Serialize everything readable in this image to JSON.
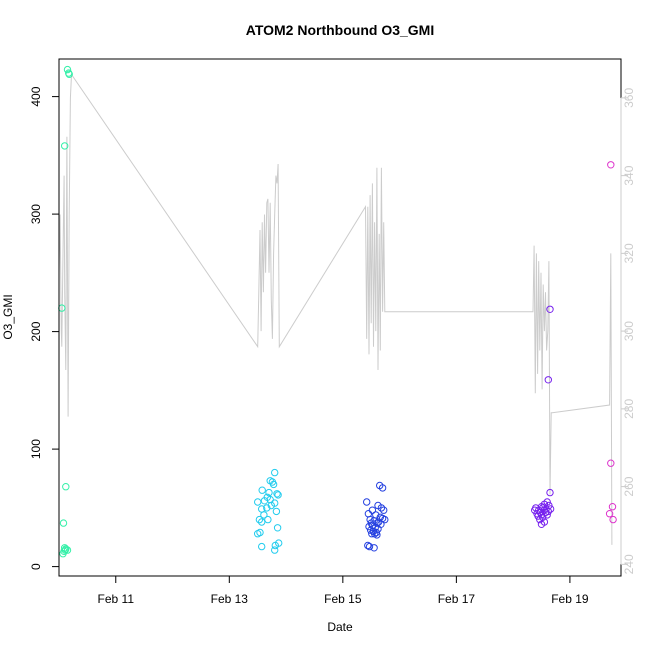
{
  "chart_data": {
    "type": "scatter",
    "title": "ATOM2 Northbound O3_GMI",
    "xlabel": "Date",
    "ylabel": "O3_GMI",
    "x_ticks": [
      {
        "label": "Feb 11",
        "day": 11
      },
      {
        "label": "Feb 13",
        "day": 13
      },
      {
        "label": "Feb 15",
        "day": 15
      },
      {
        "label": "Feb 17",
        "day": 17
      },
      {
        "label": "Feb 19",
        "day": 19
      }
    ],
    "xlim_days": [
      10.0,
      19.9
    ],
    "ylim": [
      -8,
      432
    ],
    "y_ticks": [
      0,
      100,
      200,
      300,
      400
    ],
    "y2lim": [
      237,
      370
    ],
    "y2_ticks": [
      240,
      260,
      280,
      300,
      320,
      340,
      360
    ],
    "y2_color": "#cccccc",
    "grid": false,
    "series": [
      {
        "color": "#33f0a8",
        "points": [
          [
            10.15,
            423
          ],
          [
            10.17,
            420
          ],
          [
            10.18,
            419
          ],
          [
            10.1,
            358
          ],
          [
            10.05,
            220
          ],
          [
            10.12,
            68
          ],
          [
            10.08,
            37
          ],
          [
            10.1,
            16
          ],
          [
            10.12,
            15
          ],
          [
            10.11,
            14
          ],
          [
            10.15,
            14
          ],
          [
            10.09,
            13
          ],
          [
            10.07,
            11
          ]
        ]
      },
      {
        "color": "#22ccee",
        "points": [
          [
            13.8,
            80
          ],
          [
            13.72,
            73
          ],
          [
            13.76,
            72
          ],
          [
            13.78,
            70
          ],
          [
            13.58,
            65
          ],
          [
            13.7,
            63
          ],
          [
            13.84,
            62
          ],
          [
            13.86,
            61
          ],
          [
            13.67,
            59
          ],
          [
            13.72,
            57
          ],
          [
            13.5,
            55
          ],
          [
            13.62,
            56
          ],
          [
            13.8,
            54
          ],
          [
            13.74,
            52
          ],
          [
            13.66,
            50
          ],
          [
            13.57,
            49
          ],
          [
            13.83,
            47
          ],
          [
            13.61,
            44
          ],
          [
            13.53,
            40
          ],
          [
            13.68,
            40
          ],
          [
            13.57,
            38
          ],
          [
            13.85,
            33
          ],
          [
            13.54,
            29
          ],
          [
            13.5,
            28
          ],
          [
            13.87,
            20
          ],
          [
            13.81,
            18
          ],
          [
            13.57,
            17
          ],
          [
            13.8,
            14
          ]
        ]
      },
      {
        "color": "#2440e0",
        "points": [
          [
            15.65,
            69
          ],
          [
            15.7,
            67
          ],
          [
            15.42,
            55
          ],
          [
            15.62,
            52
          ],
          [
            15.68,
            50
          ],
          [
            15.72,
            48
          ],
          [
            15.52,
            48
          ],
          [
            15.45,
            45
          ],
          [
            15.58,
            44
          ],
          [
            15.66,
            42
          ],
          [
            15.7,
            41
          ],
          [
            15.74,
            40
          ],
          [
            15.48,
            40
          ],
          [
            15.55,
            39
          ],
          [
            15.63,
            38
          ],
          [
            15.5,
            37
          ],
          [
            15.6,
            37
          ],
          [
            15.67,
            36
          ],
          [
            15.52,
            35
          ],
          [
            15.46,
            34
          ],
          [
            15.57,
            33
          ],
          [
            15.62,
            32
          ],
          [
            15.49,
            31
          ],
          [
            15.54,
            30
          ],
          [
            15.59,
            29
          ],
          [
            15.51,
            28
          ],
          [
            15.56,
            28
          ],
          [
            15.6,
            27
          ],
          [
            15.44,
            18
          ],
          [
            15.47,
            17
          ],
          [
            15.55,
            16
          ]
        ]
      },
      {
        "color": "#7722ee",
        "points": [
          [
            18.65,
            219
          ],
          [
            18.62,
            159
          ],
          [
            18.65,
            63
          ],
          [
            18.6,
            55
          ],
          [
            18.55,
            53
          ],
          [
            18.63,
            52
          ],
          [
            18.5,
            51
          ],
          [
            18.4,
            50
          ],
          [
            18.52,
            50
          ],
          [
            18.58,
            49
          ],
          [
            18.66,
            49
          ],
          [
            18.45,
            48
          ],
          [
            18.38,
            48
          ],
          [
            18.54,
            48
          ],
          [
            18.62,
            47
          ],
          [
            18.48,
            46
          ],
          [
            18.57,
            46
          ],
          [
            18.42,
            45
          ],
          [
            18.5,
            44
          ],
          [
            18.6,
            44
          ],
          [
            18.44,
            43
          ],
          [
            18.52,
            42
          ],
          [
            18.47,
            40
          ],
          [
            18.55,
            38
          ],
          [
            18.5,
            36
          ]
        ]
      },
      {
        "color": "#dd33cc",
        "points": [
          [
            19.72,
            342
          ],
          [
            19.72,
            88
          ],
          [
            19.75,
            51
          ],
          [
            19.7,
            45
          ],
          [
            19.76,
            40
          ]
        ]
      }
    ],
    "secondary_series": {
      "color": "#cccccc",
      "points": [
        [
          10.0,
          315
        ],
        [
          10.02,
          330
        ],
        [
          10.04,
          300
        ],
        [
          10.05,
          296
        ],
        [
          10.07,
          320
        ],
        [
          10.09,
          340
        ],
        [
          10.1,
          310
        ],
        [
          10.12,
          290
        ],
        [
          10.14,
          350
        ],
        [
          10.16,
          278
        ],
        [
          10.18,
          330
        ],
        [
          10.2,
          360
        ],
        [
          10.22,
          366
        ],
        [
          13.5,
          296
        ],
        [
          13.52,
          310
        ],
        [
          13.54,
          326
        ],
        [
          13.56,
          300
        ],
        [
          13.58,
          328
        ],
        [
          13.6,
          310
        ],
        [
          13.62,
          330
        ],
        [
          13.64,
          315
        ],
        [
          13.66,
          333
        ],
        [
          13.68,
          334
        ],
        [
          13.7,
          315
        ],
        [
          13.72,
          333
        ],
        [
          13.74,
          308
        ],
        [
          13.76,
          298
        ],
        [
          13.78,
          320
        ],
        [
          13.8,
          330
        ],
        [
          13.82,
          340
        ],
        [
          13.84,
          338
        ],
        [
          13.86,
          343
        ],
        [
          13.88,
          296
        ],
        [
          15.4,
          332
        ],
        [
          15.42,
          298
        ],
        [
          15.44,
          332
        ],
        [
          15.46,
          294
        ],
        [
          15.48,
          335
        ],
        [
          15.5,
          302
        ],
        [
          15.52,
          338
        ],
        [
          15.54,
          296
        ],
        [
          15.56,
          328
        ],
        [
          15.58,
          300
        ],
        [
          15.6,
          342
        ],
        [
          15.62,
          290
        ],
        [
          15.64,
          325
        ],
        [
          15.66,
          295
        ],
        [
          15.68,
          342
        ],
        [
          15.7,
          305
        ],
        [
          15.72,
          328
        ],
        [
          15.74,
          305
        ],
        [
          18.35,
          305
        ],
        [
          18.37,
          322
        ],
        [
          18.39,
          284
        ],
        [
          18.41,
          320
        ],
        [
          18.43,
          289
        ],
        [
          18.45,
          318
        ],
        [
          18.47,
          295
        ],
        [
          18.49,
          315
        ],
        [
          18.51,
          285
        ],
        [
          18.53,
          312
        ],
        [
          18.55,
          300
        ],
        [
          18.57,
          310
        ],
        [
          18.59,
          295
        ],
        [
          18.61,
          300
        ],
        [
          18.63,
          318
        ],
        [
          18.65,
          258
        ],
        [
          18.67,
          279
        ],
        [
          18.69,
          279
        ],
        [
          19.7,
          281
        ],
        [
          19.72,
          320
        ],
        [
          19.74,
          245
        ]
      ]
    }
  }
}
